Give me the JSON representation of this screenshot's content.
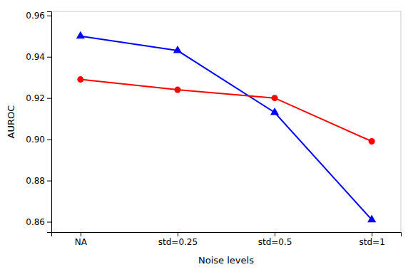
{
  "chart_data": {
    "type": "line",
    "categories": [
      "NA",
      "std=0.25",
      "std=0.5",
      "std=1"
    ],
    "series": [
      {
        "color": "#0000FF",
        "marker": "triangle",
        "values": [
          0.95,
          0.943,
          0.913,
          0.861
        ]
      },
      {
        "color": "#FF0000",
        "marker": "circle",
        "values": [
          0.929,
          0.924,
          0.92,
          0.899
        ]
      }
    ],
    "x_label": "Noise levels",
    "y_label": "AUROC",
    "ylim": [
      0.855,
      0.962
    ],
    "yticks": [
      0.86,
      0.88,
      {
        "value": 0.9,
        "label": "0.90"
      },
      0.92,
      0.94,
      0.96
    ],
    "grid": false
  }
}
